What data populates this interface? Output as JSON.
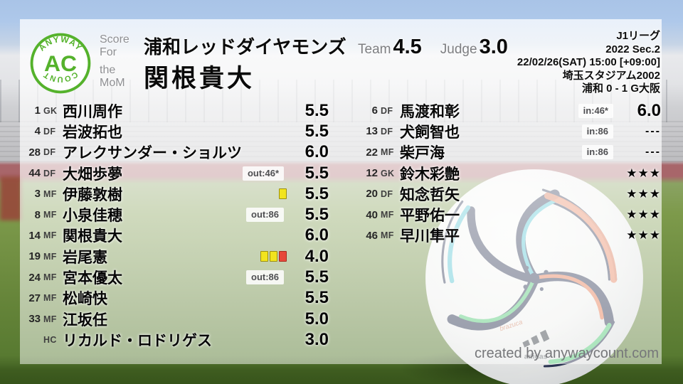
{
  "branding": {
    "logo_top": "ANYWAY",
    "logo_center": "AC",
    "logo_bottom": "COUNT",
    "footer": "created by anywaycount.com"
  },
  "header": {
    "score_for_label": "Score For",
    "team_name": "浦和レッドダイヤモンズ",
    "mom_label": "the MoM",
    "mom_name": "関根貴大",
    "team_label": "Team",
    "team_score": "4.5",
    "judge_label": "Judge",
    "judge_score": "3.0"
  },
  "match_info": {
    "lines": [
      "J1リーグ",
      "2022 Sec.2",
      "22/02/26(SAT) 15:00 [+09:00]",
      "埼玉スタジアム2002",
      "浦和 0 - 1 G大阪"
    ]
  },
  "lineup": {
    "starters": [
      {
        "num": "1",
        "pos": "GK",
        "name": "西川周作",
        "badge": "",
        "cards": [],
        "rating": "5.5",
        "rating_style": "score"
      },
      {
        "num": "4",
        "pos": "DF",
        "name": "岩波拓也",
        "badge": "",
        "cards": [],
        "rating": "5.5",
        "rating_style": "score"
      },
      {
        "num": "28",
        "pos": "DF",
        "name": "アレクサンダー・ショルツ",
        "badge": "",
        "cards": [],
        "rating": "6.0",
        "rating_style": "score"
      },
      {
        "num": "44",
        "pos": "DF",
        "name": "大畑歩夢",
        "badge": "out:46*",
        "cards": [],
        "rating": "5.5",
        "rating_style": "score"
      },
      {
        "num": "3",
        "pos": "MF",
        "name": "伊藤敦樹",
        "badge": "",
        "cards": [
          "yellow"
        ],
        "rating": "5.5",
        "rating_style": "score"
      },
      {
        "num": "8",
        "pos": "MF",
        "name": "小泉佳穂",
        "badge": "out:86",
        "cards": [],
        "rating": "5.5",
        "rating_style": "score"
      },
      {
        "num": "14",
        "pos": "MF",
        "name": "関根貴大",
        "badge": "",
        "cards": [],
        "rating": "6.0",
        "rating_style": "score"
      },
      {
        "num": "19",
        "pos": "MF",
        "name": "岩尾憲",
        "badge": "",
        "cards": [
          "yellow",
          "yellow",
          "red"
        ],
        "rating": "4.0",
        "rating_style": "score"
      },
      {
        "num": "24",
        "pos": "MF",
        "name": "宮本優太",
        "badge": "out:86",
        "cards": [],
        "rating": "5.5",
        "rating_style": "score"
      },
      {
        "num": "27",
        "pos": "MF",
        "name": "松崎快",
        "badge": "",
        "cards": [],
        "rating": "5.5",
        "rating_style": "score"
      },
      {
        "num": "33",
        "pos": "MF",
        "name": "江坂任",
        "badge": "",
        "cards": [],
        "rating": "5.0",
        "rating_style": "score"
      },
      {
        "num": "",
        "pos": "HC",
        "name": "リカルド・ロドリゲス",
        "badge": "",
        "cards": [],
        "rating": "3.0",
        "rating_style": "score"
      }
    ],
    "subs": [
      {
        "num": "6",
        "pos": "DF",
        "name": "馬渡和彰",
        "badge": "in:46*",
        "cards": [],
        "rating": "6.0",
        "rating_style": "score"
      },
      {
        "num": "13",
        "pos": "DF",
        "name": "犬飼智也",
        "badge": "in:86",
        "cards": [],
        "rating": "---",
        "rating_style": "dashes"
      },
      {
        "num": "22",
        "pos": "MF",
        "name": "柴戸海",
        "badge": "in:86",
        "cards": [],
        "rating": "---",
        "rating_style": "dashes"
      },
      {
        "num": "12",
        "pos": "GK",
        "name": "鈴木彩艶",
        "badge": "",
        "cards": [],
        "rating": "★★★",
        "rating_style": "stars"
      },
      {
        "num": "20",
        "pos": "DF",
        "name": "知念哲矢",
        "badge": "",
        "cards": [],
        "rating": "★★★",
        "rating_style": "stars"
      },
      {
        "num": "40",
        "pos": "MF",
        "name": "平野佑一",
        "badge": "",
        "cards": [],
        "rating": "★★★",
        "rating_style": "stars"
      },
      {
        "num": "46",
        "pos": "MF",
        "name": "早川隼平",
        "badge": "",
        "cards": [],
        "rating": "★★★",
        "rating_style": "stars"
      }
    ]
  },
  "ball": {
    "brand": "adidas",
    "model": "brazuca"
  },
  "colors": {
    "logo_green": "#55b22c",
    "card_yellow": "#f2e41e",
    "card_red": "#e7483a",
    "text_black": "#0a0a0a",
    "label_gray": "#8e8f92"
  }
}
